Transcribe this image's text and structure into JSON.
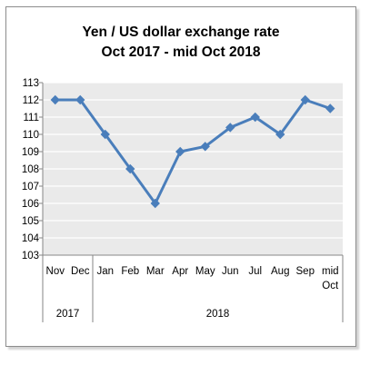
{
  "chart_data": {
    "type": "line",
    "title_lines": [
      "Yen / US dollar exchange rate",
      "Oct 2017 - mid Oct 2018"
    ],
    "categories": [
      "Nov",
      "Dec",
      "Jan",
      "Feb",
      "Mar",
      "Apr",
      "May",
      "Jun",
      "Jul",
      "Aug",
      "Sep",
      "mid Oct"
    ],
    "category_labels": [
      [
        "Nov"
      ],
      [
        "Dec"
      ],
      [
        "Jan"
      ],
      [
        "Feb"
      ],
      [
        "Mar"
      ],
      [
        "Apr"
      ],
      [
        "May"
      ],
      [
        "Jun"
      ],
      [
        "Jul"
      ],
      [
        "Aug"
      ],
      [
        "Sep"
      ],
      [
        "mid",
        "Oct"
      ]
    ],
    "year_groups": [
      {
        "label": "2017",
        "categories": [
          "Nov",
          "Dec"
        ]
      },
      {
        "label": "2018",
        "categories": [
          "Jan",
          "Feb",
          "Mar",
          "Apr",
          "May",
          "Jun",
          "Jul",
          "Aug",
          "Sep",
          "mid Oct"
        ]
      }
    ],
    "values": [
      112.0,
      112.0,
      110.0,
      108.0,
      106.0,
      109.0,
      109.3,
      110.4,
      111.0,
      110.0,
      112.0,
      111.5
    ],
    "ylim": [
      103,
      113
    ],
    "yticks": [
      103,
      104,
      105,
      106,
      107,
      108,
      109,
      110,
      111,
      112,
      113
    ],
    "grid": true,
    "legend": "none",
    "colors": {
      "line": "#4a7ebb",
      "plot_bg": "#eaeaea",
      "grid": "#ffffff",
      "axis": "#868686"
    }
  }
}
